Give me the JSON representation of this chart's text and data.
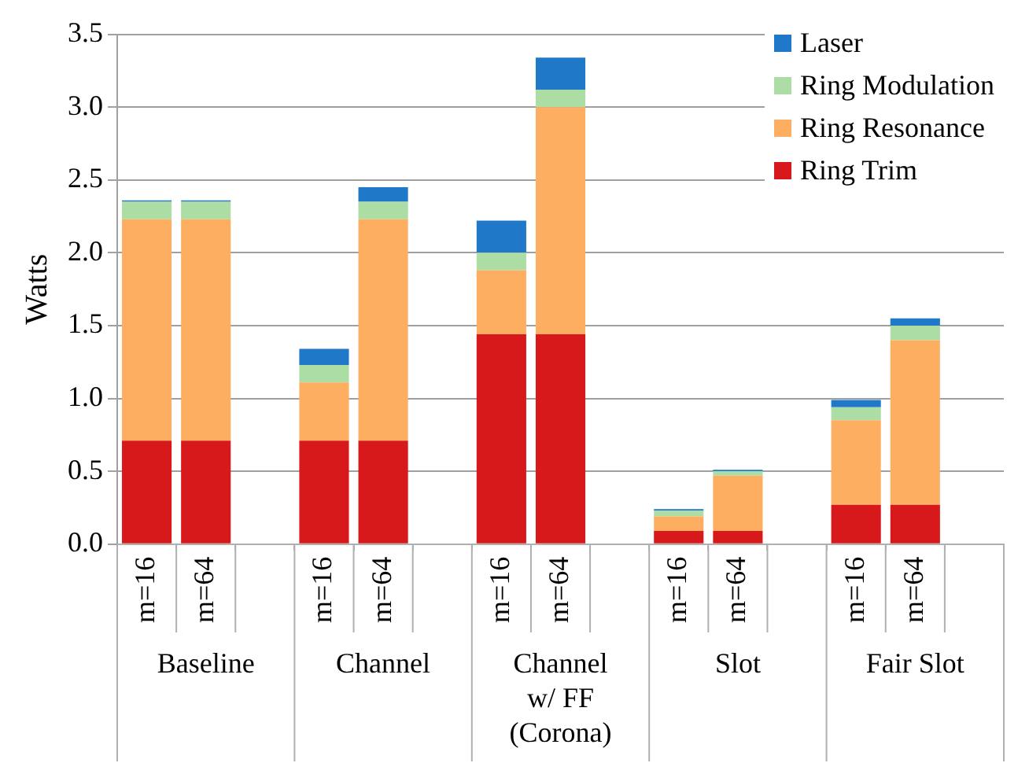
{
  "chart_data": {
    "type": "bar",
    "stacked": true,
    "ylabel": "Watts",
    "categories": [
      "m=16",
      "m=64",
      null,
      "m=16",
      "m=64",
      null,
      "m=16",
      "m=64",
      null,
      "m=16",
      "m=64",
      null,
      "m=16",
      "m=64",
      null
    ],
    "annotations": [
      "Baseline",
      "Channel",
      "Channel\nw/ FF\n(Corona)",
      "Slot",
      "Fair Slot"
    ],
    "series": [
      {
        "name": "Ring Trim",
        "color": "#d7191c",
        "values": [
          0.71,
          0.71,
          null,
          0.71,
          0.71,
          null,
          1.44,
          1.44,
          null,
          0.09,
          0.09,
          null,
          0.27,
          0.27,
          null
        ]
      },
      {
        "name": "Ring Resonance",
        "color": "#fdae61",
        "values": [
          1.52,
          1.52,
          null,
          0.4,
          1.52,
          null,
          0.44,
          1.56,
          null,
          0.1,
          0.38,
          null,
          0.58,
          1.13,
          null
        ]
      },
      {
        "name": "Ring Modulation",
        "color": "#abdda4",
        "values": [
          0.12,
          0.12,
          null,
          0.12,
          0.12,
          null,
          0.12,
          0.12,
          null,
          0.04,
          0.03,
          null,
          0.09,
          0.1,
          null
        ]
      },
      {
        "name": "Laser",
        "color": "#1f78c8",
        "values": [
          0.01,
          0.01,
          null,
          0.11,
          0.1,
          null,
          0.22,
          0.22,
          null,
          0.01,
          0.01,
          null,
          0.05,
          0.05,
          null
        ]
      }
    ],
    "ylim": [
      0,
      3.5
    ],
    "yticks": [
      {
        "value": 0,
        "label": "0.0"
      },
      {
        "value": 0.5,
        "label": "0.5"
      },
      {
        "value": 1,
        "label": "1.0"
      },
      {
        "value": 1.5,
        "label": "1.5"
      },
      {
        "value": 2,
        "label": "2.0"
      },
      {
        "value": 2.5,
        "label": "2.5"
      },
      {
        "value": 3,
        "label": "3.0"
      },
      {
        "value": 3.5,
        "label": "3.5"
      }
    ],
    "grid": "y",
    "legend": "top right"
  }
}
